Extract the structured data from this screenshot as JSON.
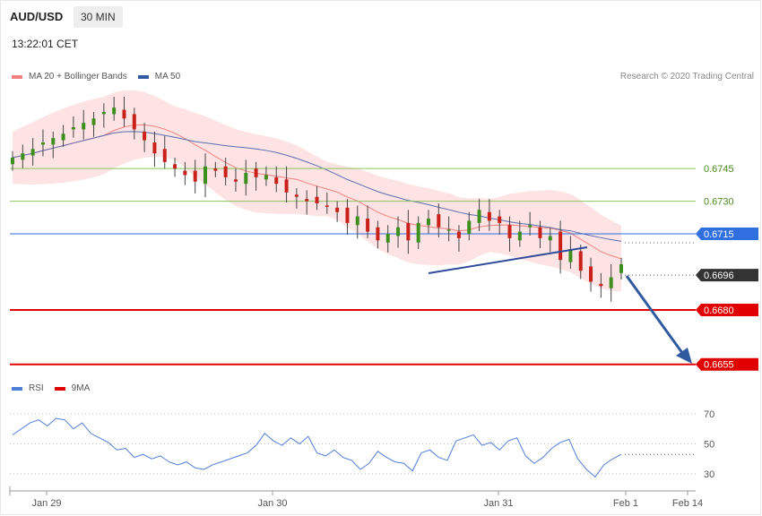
{
  "header": {
    "symbol": "AUD/USD",
    "timeframe": "30 MIN",
    "time": "13:22:01 CET",
    "research": "Research © 2020 Trading Central"
  },
  "legend": {
    "ma20": "MA 20 + Bollinger Bands",
    "ma50": "MA 50",
    "rsi": "RSI",
    "ma9": "9MA"
  },
  "colors": {
    "up": "#3d8f1e",
    "down": "#c9201a",
    "ma20": "#f08080",
    "ma50": "#5a6fb0",
    "band": "#fde3e3",
    "resistance": "#8bc45a",
    "pivot": "#2f6fe0",
    "support": "#e00000",
    "current": "#333333",
    "arrow": "#2f5aa0",
    "rsi": "#4f7fd8"
  },
  "chart_data": [
    {
      "type": "candlestick",
      "title": "AUD/USD",
      "x_tick_labels": [
        "Jan 29",
        "Jan 30",
        "Jan 31",
        "Feb 1",
        "Feb 14"
      ],
      "levels": [
        {
          "value": 0.6745,
          "label": "0.6745",
          "kind": "resistance"
        },
        {
          "value": 0.673,
          "label": "0.6730",
          "kind": "resistance"
        },
        {
          "value": 0.6715,
          "label": "0.6715",
          "kind": "pivot"
        },
        {
          "value": 0.6696,
          "label": "0.6696",
          "kind": "current"
        },
        {
          "value": 0.668,
          "label": "0.6680",
          "kind": "support"
        },
        {
          "value": 0.6655,
          "label": "0.6655",
          "kind": "support"
        }
      ],
      "ylim": [
        0.6655,
        0.6745
      ],
      "closes_approx": [
        0.675,
        0.6752,
        0.6754,
        0.6757,
        0.6759,
        0.6761,
        0.6764,
        0.6766,
        0.6768,
        0.6771,
        0.6773,
        0.6768,
        0.6763,
        0.6758,
        0.6752,
        0.6748,
        0.6745,
        0.6742,
        0.6739,
        0.6746,
        0.6744,
        0.6741,
        0.6739,
        0.6743,
        0.6741,
        0.6742,
        0.6738,
        0.6734,
        0.6732,
        0.673,
        0.6729,
        0.6728,
        0.6725,
        0.672,
        0.6723,
        0.6716,
        0.6712,
        0.6715,
        0.6718,
        0.6712,
        0.672,
        0.6722,
        0.6718,
        0.6717,
        0.6713,
        0.6721,
        0.6726,
        0.6721,
        0.672,
        0.6713,
        0.6716,
        0.6719,
        0.6713,
        0.6714,
        0.6703,
        0.6708,
        0.6698,
        0.6693,
        0.6691,
        0.6695,
        0.6701
      ]
    },
    {
      "type": "line",
      "title": "RSI",
      "series": [
        {
          "name": "RSI",
          "values": [
            56,
            60,
            64,
            66,
            62,
            67,
            66,
            60,
            64,
            57,
            54,
            51,
            46,
            47,
            41,
            43,
            40,
            42,
            38,
            36,
            38,
            34,
            33,
            36,
            38,
            40,
            42,
            44,
            49,
            57,
            52,
            49,
            54,
            50,
            55,
            44,
            42,
            46,
            41,
            39,
            33,
            37,
            45,
            41,
            38,
            37,
            32,
            44,
            46,
            41,
            39,
            52,
            54,
            56,
            49,
            51,
            46,
            52,
            54,
            42,
            37,
            41,
            47,
            51,
            53,
            40,
            33,
            28,
            36,
            40,
            43
          ]
        }
      ],
      "y_tick_labels": [
        "70",
        "50",
        "30"
      ],
      "ylim": [
        20,
        75
      ]
    }
  ]
}
